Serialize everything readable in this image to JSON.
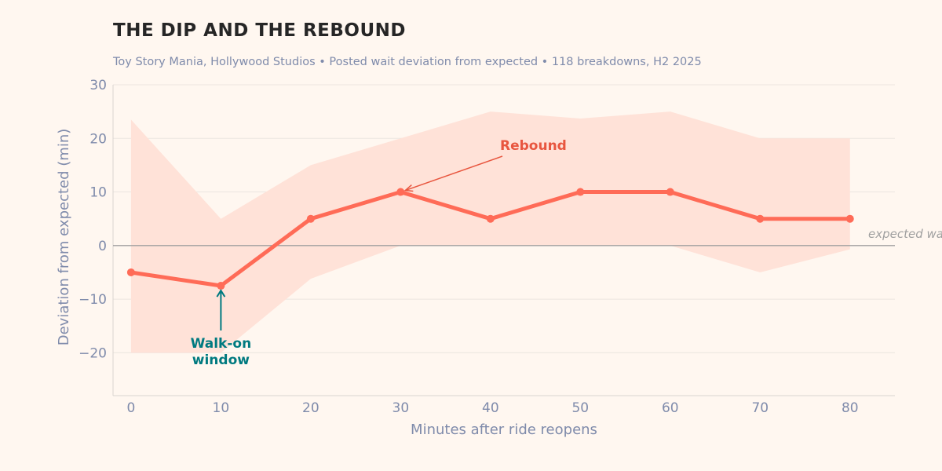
{
  "chart_data": {
    "type": "line",
    "title": "THE DIP AND THE REBOUND",
    "subtitle": "Toy Story Mania, Hollywood Studios  •  Posted wait deviation from expected  •  118 breakdowns, H2 2025",
    "xlabel": "Minutes after ride reopens",
    "ylabel": "Deviation from expected (min)",
    "xlim": [
      -2,
      85
    ],
    "ylim": [
      -28,
      30
    ],
    "xticks": [
      0,
      10,
      20,
      30,
      40,
      50,
      60,
      70,
      80
    ],
    "yticks": [
      -20,
      -10,
      0,
      10,
      20,
      30
    ],
    "ytick_labels": [
      "−20",
      "−10",
      "0",
      "10",
      "20",
      "30"
    ],
    "grid": true,
    "x": [
      0,
      10,
      20,
      30,
      40,
      50,
      60,
      70,
      80
    ],
    "y": [
      -5,
      -7.5,
      5,
      10,
      5,
      10,
      10,
      5,
      5
    ],
    "band_upper": [
      23.5,
      5,
      15,
      20,
      25,
      23.7,
      25,
      20,
      20
    ],
    "band_lower": [
      -20,
      -20,
      -6.2,
      0,
      0,
      0,
      0,
      -5,
      -0.7
    ],
    "reference_line": {
      "y": 0,
      "label": "expected wait"
    },
    "annotations": [
      {
        "text": "Rebound",
        "x": 30,
        "y": 10,
        "color": "#e8563f"
      },
      {
        "text_lines": [
          "Walk-on",
          "window"
        ],
        "x": 10,
        "y": -7.5,
        "color": "#007a80"
      }
    ],
    "colors": {
      "line": "#ff6b57",
      "band": "#ffe2d8",
      "axis_text": "#7f8bab"
    }
  }
}
